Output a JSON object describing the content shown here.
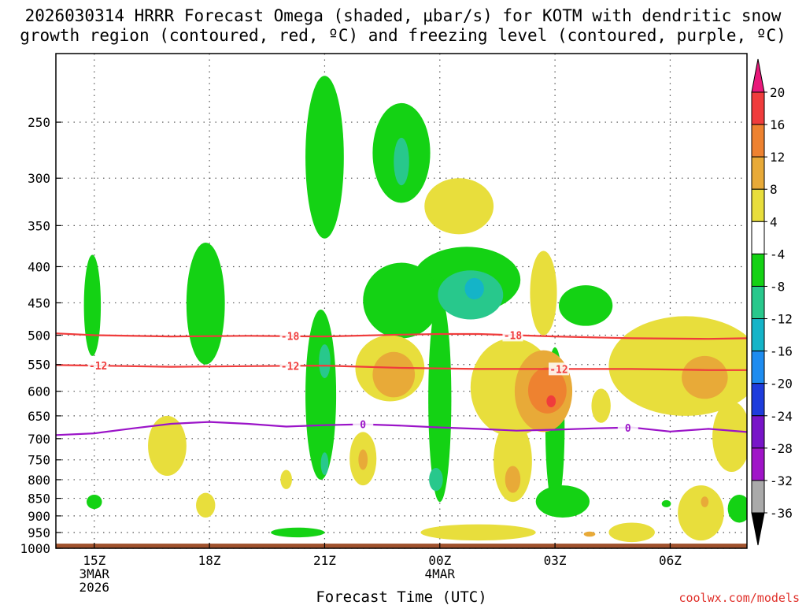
{
  "title": {
    "line1": "2026030314 HRRR Forecast Omega (shaded, μbar/s) for KOTM with dendritic snow",
    "line2": "growth region (contoured, red, ºC) and freezing level (contoured, purple, ºC)"
  },
  "credit": "coolwx.com/models",
  "chart_data": {
    "type": "heatmap",
    "xlabel": "Forecast Time (UTC)",
    "ylabel": "",
    "x_ticks": [
      {
        "hour": 0,
        "lines": [
          "15Z",
          "3MAR",
          "2026"
        ]
      },
      {
        "hour": 3,
        "lines": [
          "18Z"
        ]
      },
      {
        "hour": 6,
        "lines": [
          "21Z"
        ]
      },
      {
        "hour": 9,
        "lines": [
          "00Z",
          "4MAR"
        ]
      },
      {
        "hour": 12,
        "lines": [
          "03Z"
        ]
      },
      {
        "hour": 15,
        "lines": [
          "06Z"
        ]
      }
    ],
    "xlim": [
      -1,
      17
    ],
    "y_scale": "log-pressure",
    "ylim": [
      1000,
      200
    ],
    "y_ticks": [
      250,
      300,
      350,
      400,
      450,
      500,
      550,
      600,
      650,
      700,
      750,
      800,
      850,
      900,
      950,
      1000
    ],
    "colorbar": {
      "labels": [
        "20",
        "16",
        "12",
        "8",
        "4",
        "-4",
        "-8",
        "-12",
        "-16",
        "-20",
        "-24",
        "-28",
        "-32",
        "-36"
      ],
      "bins": [
        {
          "range": ">20",
          "color": "#e8187a"
        },
        {
          "range": "16 to 20",
          "color": "#f03c3c"
        },
        {
          "range": "12 to 16",
          "color": "#ee8230"
        },
        {
          "range": "8 to 12",
          "color": "#e8aa38"
        },
        {
          "range": "4 to 8",
          "color": "#e8de3c"
        },
        {
          "range": "-4 to 4",
          "color": "#ffffff"
        },
        {
          "range": "-8 to -4",
          "color": "#14d214"
        },
        {
          "range": "-12 to -8",
          "color": "#28c88c"
        },
        {
          "range": "-16 to -12",
          "color": "#14b4c8"
        },
        {
          "range": "-20 to -16",
          "color": "#1e8cf0"
        },
        {
          "range": "-24 to -20",
          "color": "#1e3cdc"
        },
        {
          "range": "-28 to -24",
          "color": "#7814c8"
        },
        {
          "range": "-32 to -28",
          "color": "#a014c8"
        },
        {
          "range": "-36 to -32",
          "color": "#aaaaaa"
        },
        {
          "range": "<-36",
          "color": "#000000"
        }
      ]
    },
    "omega_regions": [
      {
        "value": -6,
        "hour": -0.05,
        "p": 460,
        "dh": 0.22,
        "dp": 75
      },
      {
        "value": -6,
        "hour": 0.0,
        "p": 860,
        "dh": 0.2,
        "dp": 20
      },
      {
        "value": -6,
        "hour": 2.9,
        "p": 460,
        "dh": 0.5,
        "dp": 90
      },
      {
        "value": -6,
        "hour": 6.0,
        "p": 290,
        "dh": 0.5,
        "dp": 75
      },
      {
        "value": -6,
        "hour": 5.9,
        "p": 630,
        "dh": 0.4,
        "dp": 170
      },
      {
        "value": -6,
        "hour": 9.7,
        "p": 420,
        "dh": 1.4,
        "dp": 45
      },
      {
        "value": -6,
        "hour": 8.0,
        "p": 450,
        "dh": 1.0,
        "dp": 55
      },
      {
        "value": -6,
        "hour": 9.0,
        "p": 650,
        "dh": 0.3,
        "dp": 210
      },
      {
        "value": -6,
        "hour": 8.0,
        "p": 280,
        "dh": 0.75,
        "dp": 45
      },
      {
        "value": -6,
        "hour": 12.8,
        "p": 455,
        "dh": 0.7,
        "dp": 30
      },
      {
        "value": -6,
        "hour": 12.0,
        "p": 700,
        "dh": 0.25,
        "dp": 180
      },
      {
        "value": -6,
        "hour": 12.2,
        "p": 860,
        "dh": 0.7,
        "dp": 45
      },
      {
        "value": -6,
        "hour": 5.3,
        "p": 950,
        "dh": 0.7,
        "dp": 15
      },
      {
        "value": -6,
        "hour": 16.8,
        "p": 880,
        "dh": 0.3,
        "dp": 40
      },
      {
        "value": -6,
        "hour": 14.9,
        "p": 865,
        "dh": 0.12,
        "dp": 10
      },
      {
        "value": -10,
        "hour": 9.8,
        "p": 440,
        "dh": 0.85,
        "dp": 35
      },
      {
        "value": -10,
        "hour": 6.0,
        "p": 545,
        "dh": 0.15,
        "dp": 30
      },
      {
        "value": -10,
        "hour": 8.9,
        "p": 800,
        "dh": 0.18,
        "dp": 30
      },
      {
        "value": -10,
        "hour": 8.0,
        "p": 285,
        "dh": 0.2,
        "dp": 22
      },
      {
        "value": -10,
        "hour": 6.0,
        "p": 760,
        "dh": 0.1,
        "dp": 28
      },
      {
        "value": -14,
        "hour": 9.9,
        "p": 430,
        "dh": 0.25,
        "dp": 15
      },
      {
        "value": 6,
        "hour": 9.5,
        "p": 330,
        "dh": 0.9,
        "dp": 30
      },
      {
        "value": 6,
        "hour": 7.7,
        "p": 560,
        "dh": 0.9,
        "dp": 60
      },
      {
        "value": 6,
        "hour": 10.9,
        "p": 600,
        "dh": 1.1,
        "dp": 95
      },
      {
        "value": 6,
        "hour": 11.7,
        "p": 440,
        "dh": 0.35,
        "dp": 60
      },
      {
        "value": 6,
        "hour": 15.4,
        "p": 560,
        "dh": 2.0,
        "dp": 90
      },
      {
        "value": 6,
        "hour": 16.6,
        "p": 700,
        "dh": 0.5,
        "dp": 80
      },
      {
        "value": 6,
        "hour": 1.9,
        "p": 720,
        "dh": 0.5,
        "dp": 70
      },
      {
        "value": 6,
        "hour": 2.9,
        "p": 870,
        "dh": 0.25,
        "dp": 35
      },
      {
        "value": 6,
        "hour": 7.0,
        "p": 750,
        "dh": 0.35,
        "dp": 65
      },
      {
        "value": 6,
        "hour": 5.0,
        "p": 800,
        "dh": 0.15,
        "dp": 25
      },
      {
        "value": 6,
        "hour": 10.0,
        "p": 950,
        "dh": 1.5,
        "dp": 25
      },
      {
        "value": 6,
        "hour": 10.9,
        "p": 760,
        "dh": 0.5,
        "dp": 100
      },
      {
        "value": 6,
        "hour": 14.0,
        "p": 950,
        "dh": 0.6,
        "dp": 30
      },
      {
        "value": 6,
        "hour": 15.8,
        "p": 895,
        "dh": 0.6,
        "dp": 80
      },
      {
        "value": 6,
        "hour": 13.2,
        "p": 630,
        "dh": 0.25,
        "dp": 35
      },
      {
        "value": 10,
        "hour": 7.8,
        "p": 570,
        "dh": 0.55,
        "dp": 42
      },
      {
        "value": 10,
        "hour": 11.7,
        "p": 605,
        "dh": 0.75,
        "dp": 80
      },
      {
        "value": 10,
        "hour": 15.9,
        "p": 575,
        "dh": 0.6,
        "dp": 40
      },
      {
        "value": 10,
        "hour": 7.0,
        "p": 750,
        "dh": 0.12,
        "dp": 25
      },
      {
        "value": 10,
        "hour": 10.9,
        "p": 800,
        "dh": 0.2,
        "dp": 35
      },
      {
        "value": 10,
        "hour": 12.9,
        "p": 955,
        "dh": 0.15,
        "dp": 8
      },
      {
        "value": 10,
        "hour": 15.9,
        "p": 860,
        "dh": 0.1,
        "dp": 15
      },
      {
        "value": 14,
        "hour": 11.8,
        "p": 600,
        "dh": 0.5,
        "dp": 45
      },
      {
        "value": 18,
        "hour": 11.9,
        "p": 620,
        "dh": 0.12,
        "dp": 12
      }
    ],
    "contours": [
      {
        "label": "-18",
        "color": "#f03c3c",
        "points": [
          [
            -1,
            497
          ],
          [
            0,
            500
          ],
          [
            2,
            502
          ],
          [
            4,
            501
          ],
          [
            6,
            502
          ],
          [
            8,
            499
          ],
          [
            9,
            498
          ],
          [
            10,
            498
          ],
          [
            12,
            502
          ],
          [
            14,
            505
          ],
          [
            16,
            506
          ],
          [
            17,
            505
          ]
        ],
        "label_hours": [
          5.1,
          10.9
        ]
      },
      {
        "label": "-12",
        "color": "#f03c3c",
        "points": [
          [
            -1,
            551
          ],
          [
            0,
            552
          ],
          [
            2,
            554
          ],
          [
            4,
            553
          ],
          [
            6,
            552
          ],
          [
            8,
            556
          ],
          [
            10,
            558
          ],
          [
            12,
            558
          ],
          [
            14,
            558
          ],
          [
            16,
            560
          ],
          [
            17,
            560
          ]
        ],
        "label_hours": [
          0.1,
          5.1,
          12.1
        ]
      },
      {
        "label": "0",
        "color": "#9b14c8",
        "points": [
          [
            -1,
            692
          ],
          [
            0,
            688
          ],
          [
            1,
            677
          ],
          [
            2,
            667
          ],
          [
            3,
            663
          ],
          [
            4,
            667
          ],
          [
            5,
            673
          ],
          [
            6,
            670
          ],
          [
            7,
            668
          ],
          [
            8,
            671
          ],
          [
            9,
            675
          ],
          [
            10,
            678
          ],
          [
            11,
            682
          ],
          [
            12,
            680
          ],
          [
            13,
            677
          ],
          [
            14,
            675
          ],
          [
            15,
            684
          ],
          [
            16,
            678
          ],
          [
            17,
            685
          ]
        ],
        "label_hours": [
          7.0,
          13.9
        ]
      }
    ],
    "ground": {
      "p_top": 985,
      "color": "#a0522d"
    }
  }
}
